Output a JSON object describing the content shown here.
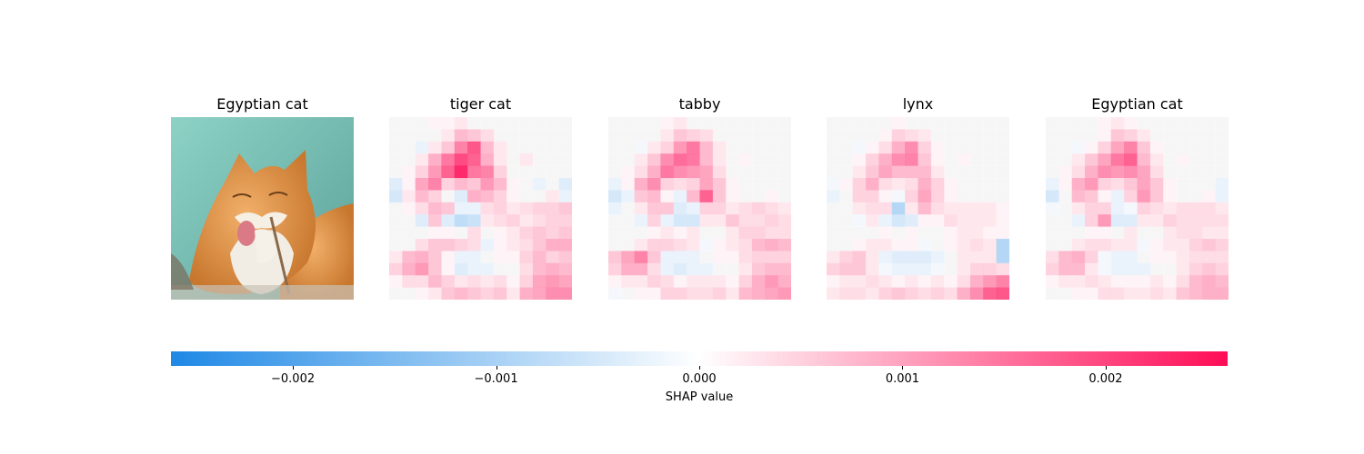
{
  "chart_data": {
    "type": "heatmap",
    "original_image": {
      "title": "Egyptian cat",
      "depicts": "orange-and-white cat with tongue out licking a paw",
      "colors": {
        "background": "#6fb5ab",
        "fur": "#d98a3a",
        "white_fur": "#f2ede4",
        "tongue": "#d97a86"
      }
    },
    "panels": [
      {
        "title": "tiger cat",
        "grid": [
          [
            0,
            0,
            0,
            0.05,
            0.05,
            0.1,
            0,
            0,
            0,
            0,
            0,
            0,
            0,
            0
          ],
          [
            0,
            0,
            0,
            0,
            0.1,
            0.3,
            0.25,
            0.15,
            0,
            0,
            0,
            0,
            0,
            0
          ],
          [
            0,
            0,
            -0.1,
            0.1,
            0.25,
            0.55,
            0.75,
            0.3,
            0.1,
            0,
            0,
            0,
            0,
            0
          ],
          [
            0,
            0,
            0.1,
            0.35,
            0.6,
            0.8,
            0.7,
            0.35,
            0.1,
            0,
            0.1,
            0,
            0,
            0
          ],
          [
            0,
            0.05,
            0.2,
            0.45,
            0.7,
            0.95,
            0.6,
            0.55,
            0.2,
            0,
            0,
            0,
            0,
            0
          ],
          [
            -0.15,
            0.05,
            0.4,
            0.55,
            0.2,
            0.3,
            0.25,
            0.45,
            0.3,
            0.05,
            0,
            -0.1,
            0,
            -0.15
          ],
          [
            -0.2,
            0.1,
            0.3,
            0.2,
            0,
            -0.15,
            0.35,
            0.3,
            0.2,
            0.05,
            0,
            0,
            0.1,
            -0.1
          ],
          [
            0,
            0.05,
            0.15,
            0.3,
            0.25,
            -0.1,
            -0.1,
            0.15,
            0.2,
            0.1,
            0.15,
            0.2,
            0.2,
            0.25
          ],
          [
            0,
            0,
            -0.15,
            0.25,
            -0.15,
            -0.3,
            -0.25,
            0.1,
            0.15,
            0.2,
            0.1,
            0.15,
            0.2,
            0.2
          ],
          [
            0,
            0,
            0,
            0.05,
            0.05,
            0,
            0.15,
            0,
            0.05,
            0.1,
            0.2,
            0.25,
            0.2,
            0.25
          ],
          [
            0,
            0,
            0.15,
            0.25,
            0.25,
            0.2,
            0.15,
            -0.1,
            0.05,
            0.1,
            0.15,
            0.25,
            0.35,
            0.35
          ],
          [
            0.1,
            0.3,
            0.35,
            0.25,
            0.05,
            -0.1,
            -0.1,
            0,
            0.05,
            0.05,
            0.2,
            0.3,
            0.2,
            0.25
          ],
          [
            0.2,
            0.35,
            0.45,
            0.25,
            0.05,
            -0.15,
            -0.1,
            -0.1,
            0,
            0,
            0.15,
            0.3,
            0.35,
            0.3
          ],
          [
            0.05,
            0.15,
            0.15,
            0.3,
            0.2,
            0.1,
            0.15,
            0.1,
            0.15,
            0.05,
            0.2,
            0.4,
            0.45,
            0.4
          ],
          [
            0,
            0,
            0.05,
            0.1,
            0.25,
            0.3,
            0.25,
            0.2,
            0.25,
            0.1,
            0.35,
            0.4,
            0.5,
            0.5
          ]
        ]
      },
      {
        "title": "tabby",
        "grid": [
          [
            0,
            0,
            0,
            0,
            0.05,
            0.1,
            0,
            0,
            0,
            0,
            0,
            0,
            0,
            0
          ],
          [
            0,
            0,
            0,
            0,
            0.1,
            0.25,
            0.2,
            0.15,
            0,
            0,
            0,
            0,
            0,
            0
          ],
          [
            0,
            0,
            -0.05,
            0.1,
            0.2,
            0.45,
            0.6,
            0.3,
            0.1,
            0,
            0,
            0,
            0,
            0
          ],
          [
            0,
            0,
            0.1,
            0.25,
            0.5,
            0.65,
            0.6,
            0.3,
            0.1,
            0,
            0.05,
            0,
            0,
            0
          ],
          [
            0,
            0.05,
            0.15,
            0.35,
            0.6,
            0.5,
            0.45,
            0.4,
            0.15,
            0,
            0,
            0,
            0,
            0
          ],
          [
            -0.1,
            0.05,
            0.35,
            0.5,
            0.2,
            0.15,
            0.2,
            0.4,
            0.25,
            0.05,
            0,
            0,
            0,
            0
          ],
          [
            -0.2,
            -0.1,
            0.25,
            0.3,
            0.05,
            -0.1,
            0.3,
            0.7,
            0.25,
            0.05,
            0,
            0,
            0.05,
            0
          ],
          [
            -0.1,
            0,
            0.1,
            0.25,
            0.25,
            -0.15,
            -0.1,
            0.2,
            0.2,
            0.1,
            0.15,
            0.2,
            0.15,
            0.1
          ],
          [
            0,
            0,
            -0.1,
            0.2,
            -0.1,
            -0.2,
            -0.2,
            0.1,
            0.1,
            0.25,
            0.15,
            0.15,
            0.2,
            0.15
          ],
          [
            0,
            0,
            0,
            0.05,
            0.1,
            0.05,
            0.1,
            0,
            0,
            0.1,
            0.2,
            0.2,
            0.15,
            0.15
          ],
          [
            0,
            0,
            0.1,
            0.2,
            0.2,
            0.15,
            0.1,
            -0.05,
            0.05,
            0.1,
            0.15,
            0.3,
            0.35,
            0.3
          ],
          [
            0.25,
            0.4,
            0.55,
            0.25,
            -0.1,
            -0.1,
            -0.1,
            0,
            0.05,
            0.05,
            0.15,
            0.2,
            0.2,
            0.2
          ],
          [
            0.2,
            0.35,
            0.35,
            0.15,
            -0.1,
            -0.15,
            -0.1,
            -0.1,
            0,
            0,
            0.1,
            0.25,
            0.3,
            0.3
          ],
          [
            0.05,
            0.1,
            0.1,
            0.2,
            0.15,
            0.05,
            0.1,
            0.1,
            0.1,
            0.05,
            0.2,
            0.35,
            0.45,
            0.35
          ],
          [
            -0.05,
            0,
            0.05,
            0.05,
            0.2,
            0.2,
            0.15,
            0.15,
            0.2,
            0.1,
            0.3,
            0.35,
            0.4,
            0.45
          ]
        ]
      },
      {
        "title": "lynx",
        "grid": [
          [
            0,
            0,
            0,
            0,
            0,
            0.05,
            0,
            0,
            0,
            0,
            0,
            0,
            0,
            0
          ],
          [
            0,
            0,
            0,
            0,
            0.05,
            0.2,
            0.15,
            0.1,
            0,
            0,
            0,
            0,
            0,
            0
          ],
          [
            0,
            0,
            -0.05,
            0.05,
            0.15,
            0.35,
            0.5,
            0.2,
            0.05,
            0,
            0,
            0,
            0,
            0
          ],
          [
            0,
            0,
            0.05,
            0.2,
            0.35,
            0.5,
            0.55,
            0.25,
            0.05,
            0,
            0.05,
            0,
            0,
            0
          ],
          [
            0,
            0,
            0.1,
            0.25,
            0.4,
            0.3,
            0.3,
            0.3,
            0.1,
            0,
            0,
            0,
            0,
            0
          ],
          [
            -0.05,
            0.05,
            0.2,
            0.35,
            0.15,
            0.1,
            0.15,
            0.35,
            0.2,
            0.05,
            0,
            0,
            0,
            0
          ],
          [
            -0.1,
            0,
            0.2,
            0.2,
            0.05,
            -0.05,
            0.2,
            0.4,
            0.2,
            0.05,
            0,
            0,
            0,
            0
          ],
          [
            0,
            0,
            0.1,
            0.15,
            0.15,
            -0.35,
            0.1,
            0.3,
            0.15,
            0.1,
            0.1,
            0.1,
            0.1,
            0.05
          ],
          [
            0,
            0,
            -0.05,
            0.1,
            -0.1,
            -0.2,
            -0.15,
            0.05,
            0.05,
            0.15,
            0.1,
            0.1,
            0.1,
            0.05
          ],
          [
            0,
            0,
            0,
            0,
            0.05,
            0,
            0.05,
            0,
            0,
            0.05,
            0.1,
            0.1,
            0.05,
            0.05
          ],
          [
            0,
            0,
            0.05,
            0.1,
            0.1,
            0.05,
            0.05,
            -0.05,
            0,
            0.05,
            0.1,
            0.15,
            0.1,
            -0.35
          ],
          [
            0.1,
            0.2,
            0.25,
            0.1,
            -0.1,
            -0.15,
            -0.15,
            -0.15,
            -0.1,
            0,
            0.1,
            0.1,
            0.1,
            -0.35
          ],
          [
            0.2,
            0.25,
            0.25,
            0.1,
            -0.05,
            -0.1,
            -0.1,
            -0.1,
            -0.05,
            0,
            0.1,
            0.2,
            0.2,
            0.15
          ],
          [
            0.05,
            0.1,
            0.1,
            0.15,
            0.1,
            0.05,
            0.1,
            0.05,
            0.1,
            0.05,
            0.15,
            0.35,
            0.45,
            0.55
          ],
          [
            0.1,
            0.15,
            0.15,
            0.1,
            0.2,
            0.25,
            0.2,
            0.15,
            0.2,
            0.15,
            0.35,
            0.5,
            0.7,
            0.75
          ]
        ]
      },
      {
        "title": "Egyptian cat",
        "grid": [
          [
            0,
            0,
            0,
            0,
            0.05,
            0.1,
            0.05,
            0,
            0,
            0,
            0,
            0,
            0,
            0
          ],
          [
            0,
            0,
            0,
            0,
            0.05,
            0.25,
            0.2,
            0.1,
            0,
            0,
            0,
            0,
            0,
            0
          ],
          [
            0,
            0,
            -0.05,
            0.05,
            0.2,
            0.4,
            0.55,
            0.25,
            0.05,
            0,
            0,
            0,
            0,
            0
          ],
          [
            0,
            0,
            0.1,
            0.25,
            0.4,
            0.6,
            0.7,
            0.3,
            0.1,
            0,
            0.05,
            0,
            0,
            0
          ],
          [
            0,
            0.05,
            0.15,
            0.35,
            0.5,
            0.45,
            0.5,
            0.4,
            0.15,
            0,
            0,
            0,
            0,
            0
          ],
          [
            -0.1,
            0.05,
            0.35,
            0.45,
            0.2,
            0.15,
            0.25,
            0.4,
            0.25,
            0.05,
            0,
            0,
            0,
            -0.1
          ],
          [
            -0.2,
            0,
            0.3,
            0.25,
            0.05,
            -0.1,
            0.2,
            0.45,
            0.25,
            0.05,
            0,
            0,
            0.05,
            -0.1
          ],
          [
            -0.05,
            0,
            0.1,
            0.2,
            0.2,
            -0.1,
            -0.05,
            0.2,
            0.15,
            0.1,
            0.15,
            0.15,
            0.15,
            0.1
          ],
          [
            0,
            0,
            -0.1,
            0.2,
            0.45,
            -0.15,
            -0.15,
            0.1,
            0.1,
            0.2,
            0.15,
            0.15,
            0.15,
            0.15
          ],
          [
            0,
            0,
            0,
            0.05,
            0.05,
            0,
            0.1,
            0,
            0,
            0.1,
            0.15,
            0.15,
            0.1,
            0.1
          ],
          [
            0,
            0,
            0.1,
            0.15,
            0.15,
            0.1,
            0.1,
            -0.05,
            0.05,
            0.1,
            0.1,
            0.2,
            0.25,
            0.2
          ],
          [
            0.15,
            0.3,
            0.35,
            0.2,
            -0.05,
            -0.1,
            -0.1,
            0,
            0.05,
            0.05,
            0.1,
            0.15,
            0.15,
            0.15
          ],
          [
            0.2,
            0.3,
            0.3,
            0.1,
            -0.05,
            -0.1,
            -0.1,
            -0.1,
            0,
            0,
            0.1,
            0.2,
            0.25,
            0.2
          ],
          [
            0.05,
            0.1,
            0.1,
            0.15,
            0.1,
            0.05,
            0.05,
            0.05,
            0.1,
            0.05,
            0.15,
            0.3,
            0.35,
            0.3
          ],
          [
            0,
            0,
            0.05,
            0.05,
            0.15,
            0.15,
            0.1,
            0.1,
            0.15,
            0.1,
            0.25,
            0.3,
            0.35,
            0.35
          ]
        ]
      }
    ],
    "value_scale": "grid values are fractions of the colorbar limit 0.0026",
    "colorbar": {
      "label": "SHAP value",
      "vmin": -0.0026,
      "vmax": 0.0026,
      "ticks": [
        {
          "value": -0.002,
          "label": "−0.002"
        },
        {
          "value": -0.001,
          "label": "−0.001"
        },
        {
          "value": 0,
          "label": "0.000"
        },
        {
          "value": 0.001,
          "label": "0.001"
        },
        {
          "value": 0.002,
          "label": "0.002"
        }
      ],
      "negative_color": "#1e88e5",
      "positive_color": "#ff0d57",
      "neutral_color": "#ffffff"
    }
  }
}
